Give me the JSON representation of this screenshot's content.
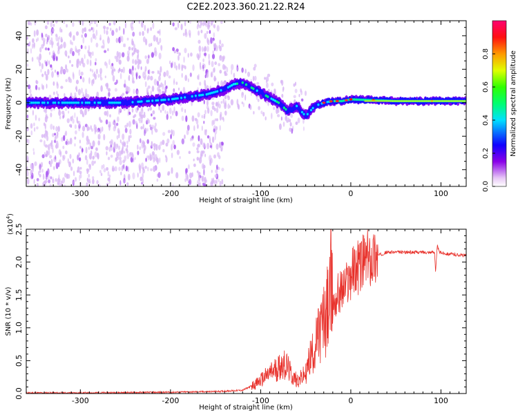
{
  "chart_data": [
    {
      "type": "heatmap",
      "title": "C2E2.2023.360.21.22.R24",
      "xlabel": "Height of straight line (km)",
      "ylabel": "Frequency (Hz)",
      "xlim": [
        -360,
        128
      ],
      "ylim": [
        -50,
        49
      ],
      "xticks": [
        "-300",
        "-200",
        "-100",
        "0",
        "100"
      ],
      "yticks": [
        "-40",
        "-20",
        "0",
        "20",
        "40"
      ],
      "colorbar": {
        "label": "Normalized spectral amplitude",
        "range": [
          0,
          1
        ],
        "ticks": [
          "0.0",
          "0.2",
          "0.4",
          "0.6",
          "0.8"
        ]
      },
      "ridge": {
        "x": [
          -360,
          -300,
          -250,
          -200,
          -160,
          -140,
          -130,
          -120,
          -100,
          -80,
          -70,
          -60,
          -50,
          -40,
          -30,
          -20,
          -10,
          0,
          50,
          128
        ],
        "y": [
          0,
          0,
          0,
          2,
          5,
          8,
          11,
          12,
          6,
          0,
          -5,
          -2,
          -8,
          -2,
          0,
          1,
          1,
          2,
          1,
          1
        ]
      }
    },
    {
      "type": "line",
      "title": "",
      "xlabel": "Height of straight line (km)",
      "ylabel": "SNR (10 * v/v)",
      "multiplier": "(x10",
      "multiplier_exp": "4",
      "multiplier_close": ")",
      "xlim": [
        -360,
        128
      ],
      "ylim": [
        0,
        2.5
      ],
      "xticks": [
        "-300",
        "-200",
        "-100",
        "0",
        "100"
      ],
      "yticks": [
        "0.0",
        "0.5",
        "1.0",
        "1.5",
        "2.0",
        "2.5"
      ],
      "series": [
        {
          "color": "#e8302a",
          "x": [
            -360,
            -300,
            -200,
            -150,
            -120,
            -105,
            -95,
            -85,
            -75,
            -70,
            -65,
            -58,
            -50,
            -45,
            -40,
            -35,
            -30,
            -25,
            -22,
            -18,
            -15,
            -10,
            -5,
            0,
            5,
            10,
            20,
            30,
            40,
            60,
            80,
            93,
            94,
            96,
            98,
            110,
            128
          ],
          "y": [
            0.01,
            0.01,
            0.02,
            0.03,
            0.05,
            0.15,
            0.25,
            0.35,
            0.45,
            0.4,
            0.25,
            0.2,
            0.3,
            0.55,
            0.7,
            0.9,
            1.1,
            1.3,
            1.45,
            1.35,
            1.5,
            1.55,
            1.65,
            1.8,
            1.9,
            1.95,
            2.05,
            2.1,
            2.15,
            2.15,
            2.15,
            2.15,
            1.85,
            2.25,
            2.15,
            2.12,
            2.1
          ]
        }
      ]
    }
  ]
}
